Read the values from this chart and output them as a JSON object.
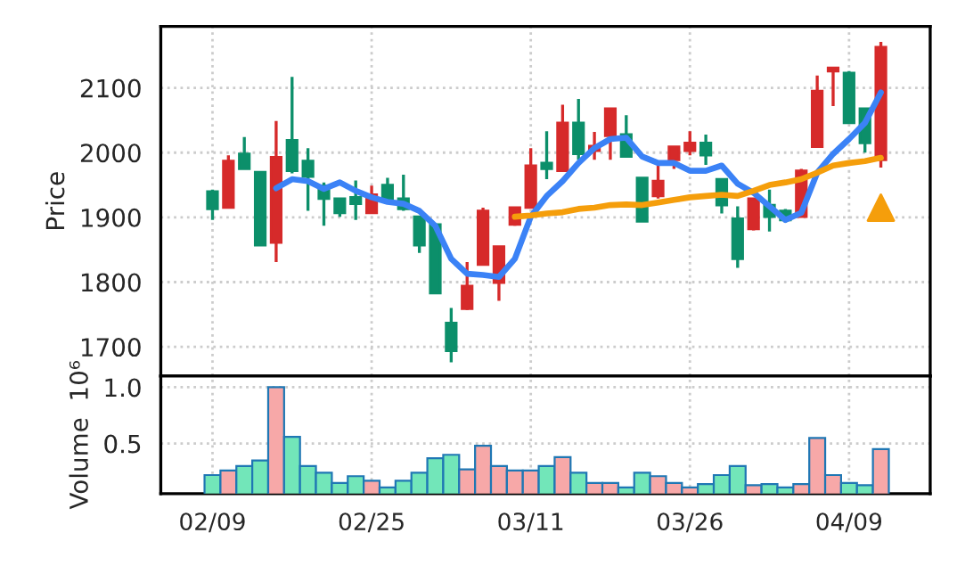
{
  "chart_data": [
    {
      "type": "candlestick",
      "ylabel": "Price",
      "categories": [
        null,
        null,
        null,
        null,
        null,
        null,
        null,
        null,
        null,
        null,
        null,
        null,
        null,
        null,
        null,
        null,
        null,
        null,
        null,
        null,
        null,
        null,
        null,
        null,
        null,
        null,
        null,
        null,
        null,
        null,
        null,
        null,
        null,
        null,
        null,
        null,
        null,
        null,
        null,
        null,
        null,
        null,
        null
      ],
      "ohlc": [
        [
          1940,
          1943,
          1896,
          1913
        ],
        [
          1915,
          1996,
          1915,
          1987
        ],
        [
          1998,
          2024,
          1975,
          1975
        ],
        [
          1970,
          1970,
          1857,
          1857
        ],
        [
          1861,
          2049,
          1831,
          1993
        ],
        [
          2019,
          2117,
          1968,
          1972
        ],
        [
          1987,
          2007,
          1910,
          1963
        ],
        [
          1949,
          1954,
          1887,
          1929
        ],
        [
          1929,
          1929,
          1901,
          1907
        ],
        [
          1931,
          1957,
          1896,
          1921
        ],
        [
          1907,
          1949,
          1907,
          1935
        ],
        [
          1950,
          1961,
          1926,
          1926
        ],
        [
          1929,
          1966,
          1910,
          1913
        ],
        [
          1901,
          1901,
          1845,
          1857
        ],
        [
          1889,
          1889,
          1783,
          1783
        ],
        [
          1737,
          1760,
          1676,
          1694
        ],
        [
          1759,
          1831,
          1757,
          1794
        ],
        [
          1827,
          1915,
          1827,
          1910
        ],
        [
          1799,
          1855,
          1771,
          1855
        ],
        [
          1889,
          1915,
          1887,
          1915
        ],
        [
          1915,
          2007,
          1915,
          1980
        ],
        [
          1984,
          2033,
          1959,
          1975
        ],
        [
          1972,
          2074,
          1972,
          2046
        ],
        [
          2046,
          2083,
          1989,
          1998
        ],
        [
          2003,
          2032,
          1989,
          2010
        ],
        [
          2026,
          2068,
          1989,
          2068
        ],
        [
          2028,
          2058,
          1994,
          1994
        ],
        [
          1961,
          1961,
          1894,
          1894
        ],
        [
          1933,
          1980,
          1929,
          1956
        ],
        [
          1989,
          2009,
          1975,
          2009
        ],
        [
          2003,
          2033,
          1996,
          2015
        ],
        [
          2015,
          2028,
          1981,
          1996
        ],
        [
          1959,
          1959,
          1906,
          1919
        ],
        [
          1898,
          1917,
          1822,
          1836
        ],
        [
          1882,
          1929,
          1880,
          1929
        ],
        [
          1919,
          1943,
          1878,
          1901
        ],
        [
          1910,
          1913,
          1892,
          1896
        ],
        [
          1901,
          1975,
          1901,
          1972
        ],
        [
          2009,
          2119,
          2009,
          2095
        ],
        [
          2126,
          2131,
          2072,
          2131
        ],
        [
          2123,
          2126,
          2046,
          2046
        ],
        [
          2068,
          2068,
          2000,
          2015
        ],
        [
          1989,
          2171,
          1977,
          2163
        ]
      ],
      "colors": [
        "#0c8f6a",
        "#d62a2a",
        "#0c8f6a",
        "#0c8f6a",
        "#d62a2a",
        "#0c8f6a",
        "#0c8f6a",
        "#0c8f6a",
        "#0c8f6a",
        "#0c8f6a",
        "#d62a2a",
        "#0c8f6a",
        "#0c8f6a",
        "#0c8f6a",
        "#0c8f6a",
        "#0c8f6a",
        "#d62a2a",
        "#d62a2a",
        "#d62a2a",
        "#d62a2a",
        "#d62a2a",
        "#0c8f6a",
        "#d62a2a",
        "#0c8f6a",
        "#d62a2a",
        "#d62a2a",
        "#0c8f6a",
        "#0c8f6a",
        "#d62a2a",
        "#d62a2a",
        "#d62a2a",
        "#0c8f6a",
        "#0c8f6a",
        "#0c8f6a",
        "#d62a2a",
        "#0c8f6a",
        "#0c8f6a",
        "#d62a2a",
        "#d62a2a",
        "#d62a2a",
        "#0c8f6a",
        "#0c8f6a",
        "#d62a2a"
      ],
      "series": [
        {
          "type": "line",
          "color": "#3b82f6",
          "values": [
            null,
            null,
            null,
            null,
            1945,
            1959,
            1956,
            1944,
            1954,
            1941,
            1931,
            1924,
            1921,
            1910,
            1887,
            1836,
            1813,
            1811,
            1808,
            1836,
            1901,
            1933,
            1956,
            1984,
            2007,
            2021,
            2023,
            1994,
            1984,
            1984,
            1972,
            1972,
            1980,
            1952,
            1938,
            1917,
            1896,
            1907,
            1969,
            1998,
            2021,
            2046,
            2093
          ]
        },
        {
          "type": "line",
          "color": "#f59e0b",
          "values": [
            null,
            null,
            null,
            null,
            null,
            null,
            null,
            null,
            null,
            null,
            null,
            null,
            null,
            null,
            null,
            null,
            null,
            null,
            null,
            1901,
            1903,
            1906,
            1908,
            1913,
            1915,
            1919,
            1920,
            1919,
            1923,
            1927,
            1931,
            1933,
            1935,
            1933,
            1941,
            1950,
            1954,
            1959,
            1969,
            1980,
            1984,
            1987,
            1992
          ]
        },
        {
          "type": "scatter",
          "marker": "triangle",
          "color": "#f59e0b",
          "values": [
            null,
            null,
            null,
            null,
            null,
            null,
            null,
            null,
            null,
            null,
            null,
            null,
            null,
            null,
            null,
            null,
            null,
            null,
            null,
            null,
            null,
            null,
            null,
            null,
            null,
            null,
            null,
            null,
            null,
            null,
            null,
            null,
            null,
            null,
            null,
            null,
            null,
            null,
            null,
            null,
            null,
            null,
            1915
          ]
        }
      ],
      "ylim": [
        1655,
        2195
      ],
      "yticks": [
        1700,
        1800,
        1900,
        2000,
        2100
      ],
      "grid": true,
      "tick_labels": "y"
    },
    {
      "type": "bar",
      "ylabel": "Volume  10⁶",
      "categories": [
        "02/09",
        null,
        null,
        null,
        null,
        null,
        null,
        null,
        null,
        null,
        "02/25",
        null,
        null,
        null,
        null,
        null,
        null,
        null,
        null,
        null,
        "03/11",
        null,
        null,
        null,
        null,
        null,
        null,
        null,
        null,
        null,
        "03/26",
        null,
        null,
        null,
        null,
        null,
        null,
        null,
        null,
        null,
        "04/09",
        null,
        null
      ],
      "values": [
        0.22,
        0.26,
        0.3,
        0.35,
        1.0,
        0.56,
        0.3,
        0.24,
        0.15,
        0.21,
        0.17,
        0.11,
        0.17,
        0.24,
        0.37,
        0.4,
        0.27,
        0.48,
        0.3,
        0.26,
        0.26,
        0.3,
        0.38,
        0.24,
        0.15,
        0.15,
        0.11,
        0.24,
        0.21,
        0.15,
        0.11,
        0.14,
        0.22,
        0.3,
        0.13,
        0.14,
        0.11,
        0.14,
        0.55,
        0.22,
        0.15,
        0.13,
        0.45
      ],
      "colors": [
        "#72e6b9",
        "#f7a8a8",
        "#72e6b9",
        "#72e6b9",
        "#f7a8a8",
        "#72e6b9",
        "#72e6b9",
        "#72e6b9",
        "#72e6b9",
        "#72e6b9",
        "#f7a8a8",
        "#72e6b9",
        "#72e6b9",
        "#72e6b9",
        "#72e6b9",
        "#72e6b9",
        "#f7a8a8",
        "#f7a8a8",
        "#f7a8a8",
        "#f7a8a8",
        "#f7a8a8",
        "#72e6b9",
        "#f7a8a8",
        "#72e6b9",
        "#f7a8a8",
        "#f7a8a8",
        "#72e6b9",
        "#72e6b9",
        "#f7a8a8",
        "#f7a8a8",
        "#f7a8a8",
        "#72e6b9",
        "#72e6b9",
        "#72e6b9",
        "#f7a8a8",
        "#72e6b9",
        "#72e6b9",
        "#f7a8a8",
        "#f7a8a8",
        "#f7a8a8",
        "#72e6b9",
        "#72e6b9",
        "#f7a8a8"
      ],
      "ylim": [
        0.055,
        1.1
      ],
      "yticks": [
        {
          "value": 0.5,
          "label": "0.5"
        },
        {
          "value": 1.0,
          "label": "1.0"
        }
      ],
      "grid": true
    }
  ]
}
